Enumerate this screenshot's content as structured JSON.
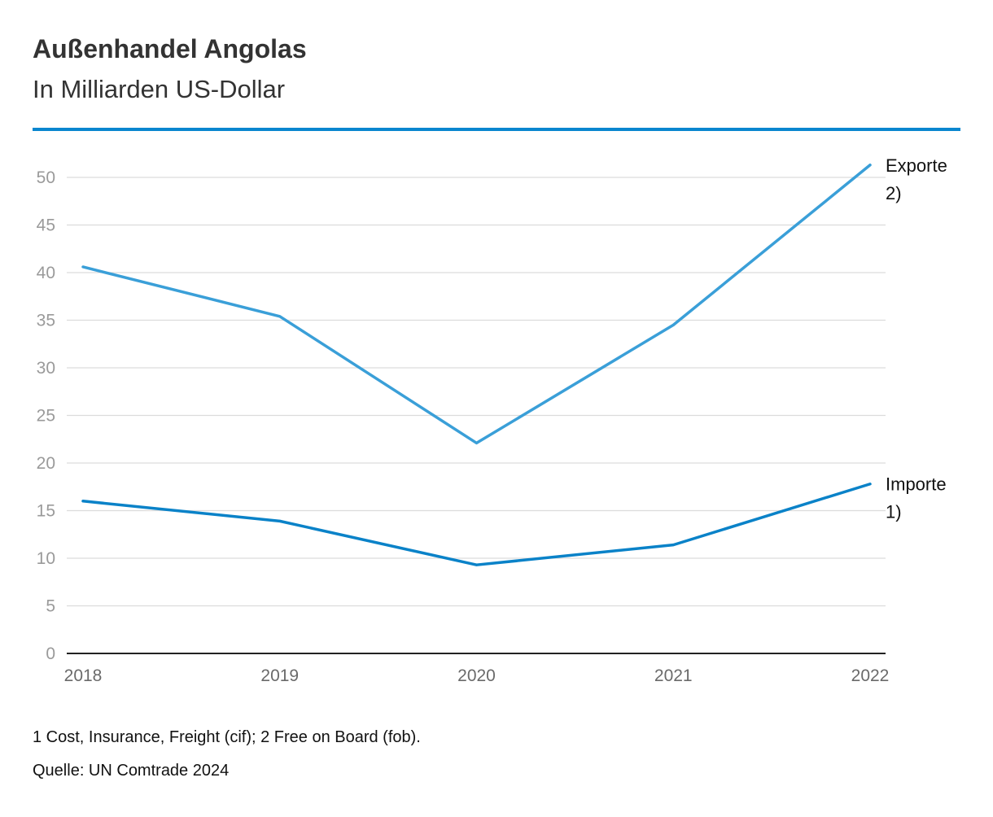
{
  "header": {
    "title": "Außenhandel Angolas",
    "subtitle": "In Milliarden US-Dollar"
  },
  "footer": {
    "footnote": "1 Cost, Insurance, Freight (cif); 2 Free on Board (fob).",
    "source": "Quelle: UN Comtrade 2024"
  },
  "chart_data": {
    "type": "line",
    "title": "Außenhandel Angolas",
    "subtitle": "In Milliarden US-Dollar",
    "xlabel": "",
    "ylabel": "",
    "x": [
      "2018",
      "2019",
      "2020",
      "2021",
      "2022"
    ],
    "ylim": [
      0,
      50
    ],
    "yticks": [
      0,
      5,
      10,
      15,
      20,
      25,
      30,
      35,
      40,
      45,
      50
    ],
    "grid": true,
    "legend": "inline-right",
    "series": [
      {
        "name": "Exporte",
        "note": "2)",
        "color": "#3a9fd8",
        "values": [
          40.6,
          35.4,
          22.1,
          34.5,
          51.3
        ]
      },
      {
        "name": "Importe",
        "note": "1)",
        "color": "#0a82c8",
        "values": [
          16.0,
          13.9,
          9.3,
          11.4,
          17.8
        ]
      }
    ]
  }
}
